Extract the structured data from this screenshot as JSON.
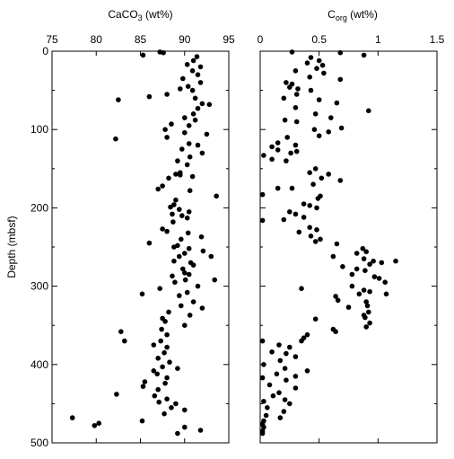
{
  "chart_data": [
    {
      "type": "scatter",
      "xlabel": "CaCO3 (wt%)",
      "ylabel": "Depth (mbsf)",
      "xlim": [
        75,
        95
      ],
      "ylim": [
        0,
        500
      ],
      "y_inverted": true,
      "x_ticks": [
        "75",
        "80",
        "85",
        "90",
        "95"
      ],
      "y_ticks": [
        "0",
        "100",
        "200",
        "300",
        "400",
        "500"
      ],
      "marker_color": "#000000",
      "points": [
        [
          87.2,
          1
        ],
        [
          87.6,
          2
        ],
        [
          85.3,
          5
        ],
        [
          91.4,
          7
        ],
        [
          91.0,
          12
        ],
        [
          90.3,
          17
        ],
        [
          91.8,
          20
        ],
        [
          90.9,
          25
        ],
        [
          91.5,
          30
        ],
        [
          89.8,
          35
        ],
        [
          91.8,
          40
        ],
        [
          90.4,
          45
        ],
        [
          89.5,
          48
        ],
        [
          90.9,
          50
        ],
        [
          88.0,
          55
        ],
        [
          86.0,
          58
        ],
        [
          91.2,
          60
        ],
        [
          82.5,
          62
        ],
        [
          92.0,
          67
        ],
        [
          92.8,
          68
        ],
        [
          91.5,
          73
        ],
        [
          91.0,
          80
        ],
        [
          90.0,
          85
        ],
        [
          91.2,
          88
        ],
        [
          88.5,
          93
        ],
        [
          90.5,
          95
        ],
        [
          87.8,
          100
        ],
        [
          90.0,
          104
        ],
        [
          92.5,
          106
        ],
        [
          88.0,
          110
        ],
        [
          82.2,
          112
        ],
        [
          90.5,
          118
        ],
        [
          91.5,
          120
        ],
        [
          89.7,
          125
        ],
        [
          92.0,
          130
        ],
        [
          90.6,
          135
        ],
        [
          89.2,
          140
        ],
        [
          90.3,
          145
        ],
        [
          89.5,
          155
        ],
        [
          89.0,
          157
        ],
        [
          89.5,
          158
        ],
        [
          90.9,
          160
        ],
        [
          88.2,
          162
        ],
        [
          87.5,
          172
        ],
        [
          87.0,
          176
        ],
        [
          90.6,
          178
        ],
        [
          93.6,
          185
        ],
        [
          89.0,
          190
        ],
        [
          88.8,
          196
        ],
        [
          88.4,
          199
        ],
        [
          89.4,
          202
        ],
        [
          90.5,
          205
        ],
        [
          88.6,
          208
        ],
        [
          89.7,
          210
        ],
        [
          90.3,
          213
        ],
        [
          88.7,
          218
        ],
        [
          87.5,
          227
        ],
        [
          88.0,
          230
        ],
        [
          90.4,
          232
        ],
        [
          91.9,
          237
        ],
        [
          89.6,
          240
        ],
        [
          86.0,
          245
        ],
        [
          89.2,
          248
        ],
        [
          88.8,
          250
        ],
        [
          90.5,
          252
        ],
        [
          92.1,
          255
        ],
        [
          90.0,
          258
        ],
        [
          89.4,
          262
        ],
        [
          93.0,
          262
        ],
        [
          88.8,
          268
        ],
        [
          90.7,
          270
        ],
        [
          91.0,
          273
        ],
        [
          89.8,
          278
        ],
        [
          90.0,
          283
        ],
        [
          90.5,
          285
        ],
        [
          88.6,
          287
        ],
        [
          90.1,
          292
        ],
        [
          93.4,
          292
        ],
        [
          88.9,
          295
        ],
        [
          91.5,
          300
        ],
        [
          87.2,
          303
        ],
        [
          90.3,
          308
        ],
        [
          85.2,
          310
        ],
        [
          89.4,
          312
        ],
        [
          91.0,
          320
        ],
        [
          89.6,
          325
        ],
        [
          92.0,
          328
        ],
        [
          88.2,
          333
        ],
        [
          90.6,
          337
        ],
        [
          87.5,
          341
        ],
        [
          87.8,
          345
        ],
        [
          90.0,
          350
        ],
        [
          87.4,
          355
        ],
        [
          82.8,
          358
        ],
        [
          88.0,
          362
        ],
        [
          87.3,
          370
        ],
        [
          83.2,
          370
        ],
        [
          86.5,
          375
        ],
        [
          88.0,
          378
        ],
        [
          87.7,
          385
        ],
        [
          87.0,
          392
        ],
        [
          88.3,
          397
        ],
        [
          87.5,
          403
        ],
        [
          89.2,
          405
        ],
        [
          86.5,
          408
        ],
        [
          86.9,
          412
        ],
        [
          88.0,
          417
        ],
        [
          85.5,
          422
        ],
        [
          87.8,
          424
        ],
        [
          85.3,
          428
        ],
        [
          87.0,
          432
        ],
        [
          82.3,
          438
        ],
        [
          86.6,
          440
        ],
        [
          88.0,
          444
        ],
        [
          87.1,
          448
        ],
        [
          89.0,
          450
        ],
        [
          88.5,
          455
        ],
        [
          90.0,
          458
        ],
        [
          87.7,
          463
        ],
        [
          77.3,
          468
        ],
        [
          85.2,
          472
        ],
        [
          80.3,
          475
        ],
        [
          79.8,
          478
        ],
        [
          90.0,
          480
        ],
        [
          91.8,
          484
        ],
        [
          89.2,
          488
        ]
      ]
    },
    {
      "type": "scatter",
      "xlabel": "Corg (wt%)",
      "ylabel": "",
      "xlim": [
        0,
        1.5
      ],
      "ylim": [
        0,
        500
      ],
      "y_inverted": true,
      "x_ticks": [
        "0",
        "0.5",
        "1",
        "1.5"
      ],
      "y_ticks": [],
      "marker_color": "#000000",
      "points": [
        [
          0.27,
          1
        ],
        [
          0.68,
          2
        ],
        [
          0.88,
          5
        ],
        [
          0.43,
          8
        ],
        [
          0.5,
          12
        ],
        [
          0.4,
          15
        ],
        [
          0.53,
          18
        ],
        [
          0.48,
          22
        ],
        [
          0.3,
          25
        ],
        [
          0.54,
          28
        ],
        [
          0.42,
          33
        ],
        [
          0.68,
          36
        ],
        [
          0.22,
          40
        ],
        [
          0.27,
          42
        ],
        [
          0.25,
          46
        ],
        [
          0.32,
          48
        ],
        [
          0.43,
          50
        ],
        [
          0.31,
          55
        ],
        [
          0.2,
          60
        ],
        [
          0.5,
          62
        ],
        [
          0.65,
          66
        ],
        [
          0.3,
          72
        ],
        [
          0.92,
          76
        ],
        [
          0.47,
          80
        ],
        [
          0.6,
          85
        ],
        [
          0.21,
          88
        ],
        [
          0.31,
          90
        ],
        [
          0.69,
          98
        ],
        [
          0.46,
          100
        ],
        [
          0.58,
          103
        ],
        [
          0.5,
          108
        ],
        [
          0.23,
          110
        ],
        [
          0.15,
          117
        ],
        [
          0.3,
          120
        ],
        [
          0.1,
          122
        ],
        [
          0.15,
          126
        ],
        [
          0.31,
          128
        ],
        [
          0.26,
          130
        ],
        [
          0.03,
          133
        ],
        [
          0.1,
          138
        ],
        [
          0.22,
          140
        ],
        [
          0.47,
          150
        ],
        [
          0.42,
          155
        ],
        [
          0.58,
          157
        ],
        [
          0.52,
          162
        ],
        [
          0.68,
          165
        ],
        [
          0.45,
          170
        ],
        [
          0.15,
          175
        ],
        [
          0.27,
          175
        ],
        [
          0.02,
          183
        ],
        [
          0.51,
          185
        ],
        [
          0.49,
          188
        ],
        [
          0.37,
          195
        ],
        [
          0.42,
          197
        ],
        [
          0.48,
          200
        ],
        [
          0.25,
          205
        ],
        [
          0.3,
          208
        ],
        [
          0.37,
          212
        ],
        [
          0.2,
          215
        ],
        [
          0.02,
          216
        ],
        [
          0.42,
          225
        ],
        [
          0.48,
          228
        ],
        [
          0.33,
          231
        ],
        [
          0.43,
          236
        ],
        [
          0.51,
          240
        ],
        [
          0.47,
          243
        ],
        [
          0.65,
          246
        ],
        [
          0.87,
          252
        ],
        [
          0.9,
          256
        ],
        [
          0.82,
          258
        ],
        [
          0.62,
          262
        ],
        [
          0.88,
          265
        ],
        [
          0.96,
          268
        ],
        [
          1.03,
          270
        ],
        [
          1.15,
          268
        ],
        [
          0.93,
          272
        ],
        [
          0.7,
          275
        ],
        [
          0.82,
          278
        ],
        [
          0.89,
          280
        ],
        [
          0.78,
          285
        ],
        [
          0.97,
          288
        ],
        [
          1.01,
          290
        ],
        [
          1.06,
          295
        ],
        [
          0.78,
          300
        ],
        [
          0.35,
          303
        ],
        [
          0.88,
          305
        ],
        [
          0.93,
          307
        ],
        [
          0.84,
          310
        ],
        [
          1.07,
          310
        ],
        [
          0.64,
          313
        ],
        [
          0.66,
          318
        ],
        [
          0.9,
          320
        ],
        [
          0.91,
          325
        ],
        [
          0.75,
          327
        ],
        [
          0.92,
          333
        ],
        [
          0.88,
          337
        ],
        [
          0.89,
          340
        ],
        [
          0.47,
          342
        ],
        [
          0.93,
          347
        ],
        [
          0.9,
          352
        ],
        [
          0.62,
          355
        ],
        [
          0.64,
          358
        ],
        [
          0.4,
          362
        ],
        [
          0.37,
          366
        ],
        [
          0.35,
          370
        ],
        [
          0.02,
          370
        ],
        [
          0.16,
          375
        ],
        [
          0.25,
          378
        ],
        [
          0.1,
          384
        ],
        [
          0.22,
          386
        ],
        [
          0.3,
          390
        ],
        [
          0.17,
          395
        ],
        [
          0.03,
          400
        ],
        [
          0.21,
          405
        ],
        [
          0.4,
          408
        ],
        [
          0.14,
          412
        ],
        [
          0.3,
          415
        ],
        [
          0.02,
          417
        ],
        [
          0.22,
          420
        ],
        [
          0.08,
          426
        ],
        [
          0.3,
          430
        ],
        [
          0.16,
          436
        ],
        [
          0.11,
          440
        ],
        [
          0.21,
          445
        ],
        [
          0.03,
          447
        ],
        [
          0.25,
          450
        ],
        [
          0.06,
          455
        ],
        [
          0.2,
          460
        ],
        [
          0.05,
          465
        ],
        [
          0.17,
          468
        ],
        [
          0.03,
          472
        ],
        [
          0.02,
          476
        ],
        [
          0.03,
          480
        ],
        [
          0.02,
          485
        ],
        [
          0.02,
          488
        ]
      ]
    }
  ]
}
